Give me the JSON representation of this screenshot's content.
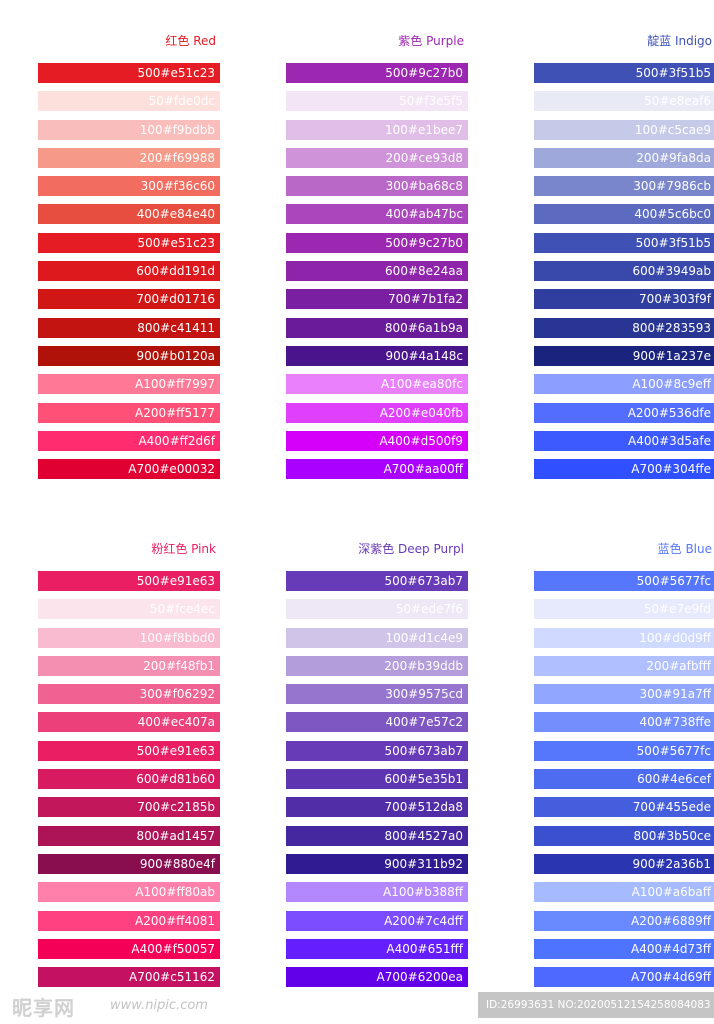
{
  "palettes": [
    {
      "title": "红色 Red",
      "title_color": "#e51c23",
      "swatches": [
        {
          "label": "500#e51c23",
          "color": "#e51c23"
        },
        {
          "label": "50#fde0dc",
          "color": "#fde0dc"
        },
        {
          "label": "100#f9bdbb",
          "color": "#f9bdbb"
        },
        {
          "label": "200#f69988",
          "color": "#f69988"
        },
        {
          "label": "300#f36c60",
          "color": "#f36c60"
        },
        {
          "label": "400#e84e40",
          "color": "#e84e40"
        },
        {
          "label": "500#e51c23",
          "color": "#e51c23"
        },
        {
          "label": "600#dd191d",
          "color": "#dd191d"
        },
        {
          "label": "700#d01716",
          "color": "#d01716"
        },
        {
          "label": "800#c41411",
          "color": "#c41411"
        },
        {
          "label": "900#b0120a",
          "color": "#b0120a"
        },
        {
          "label": "A100#ff7997",
          "color": "#ff7997"
        },
        {
          "label": "A200#ff5177",
          "color": "#ff5177"
        },
        {
          "label": "A400#ff2d6f",
          "color": "#ff2d6f"
        },
        {
          "label": "A700#e00032",
          "color": "#e00032"
        }
      ]
    },
    {
      "title": "紫色 Purple",
      "title_color": "#9c27b0",
      "swatches": [
        {
          "label": "500#9c27b0",
          "color": "#9c27b0"
        },
        {
          "label": "50#f3e5f5",
          "color": "#f3e5f5"
        },
        {
          "label": "100#e1bee7",
          "color": "#e1bee7"
        },
        {
          "label": "200#ce93d8",
          "color": "#ce93d8"
        },
        {
          "label": "300#ba68c8",
          "color": "#ba68c8"
        },
        {
          "label": "400#ab47bc",
          "color": "#ab47bc"
        },
        {
          "label": "500#9c27b0",
          "color": "#9c27b0"
        },
        {
          "label": "600#8e24aa",
          "color": "#8e24aa"
        },
        {
          "label": "700#7b1fa2",
          "color": "#7b1fa2"
        },
        {
          "label": "800#6a1b9a",
          "color": "#6a1b9a"
        },
        {
          "label": "900#4a148c",
          "color": "#4a148c"
        },
        {
          "label": "A100#ea80fc",
          "color": "#ea80fc"
        },
        {
          "label": "A200#e040fb",
          "color": "#e040fb"
        },
        {
          "label": "A400#d500f9",
          "color": "#d500f9"
        },
        {
          "label": "A700#aa00ff",
          "color": "#aa00ff"
        }
      ]
    },
    {
      "title": "靛蓝 Indigo",
      "title_color": "#3f51b5",
      "swatches": [
        {
          "label": "500#3f51b5",
          "color": "#3f51b5"
        },
        {
          "label": "50#e8eaf6",
          "color": "#e8eaf6"
        },
        {
          "label": "100#c5cae9",
          "color": "#c5cae9"
        },
        {
          "label": "200#9fa8da",
          "color": "#9fa8da"
        },
        {
          "label": "300#7986cb",
          "color": "#7986cb"
        },
        {
          "label": "400#5c6bc0",
          "color": "#5c6bc0"
        },
        {
          "label": "500#3f51b5",
          "color": "#3f51b5"
        },
        {
          "label": "600#3949ab",
          "color": "#3949ab"
        },
        {
          "label": "700#303f9f",
          "color": "#303f9f"
        },
        {
          "label": "800#283593",
          "color": "#283593"
        },
        {
          "label": "900#1a237e",
          "color": "#1a237e"
        },
        {
          "label": "A100#8c9eff",
          "color": "#8c9eff"
        },
        {
          "label": "A200#536dfe",
          "color": "#536dfe"
        },
        {
          "label": "A400#3d5afe",
          "color": "#3d5afe"
        },
        {
          "label": "A700#304ffe",
          "color": "#304ffe"
        }
      ]
    },
    {
      "title": "粉红色 Pink",
      "title_color": "#e91e63",
      "swatches": [
        {
          "label": "500#e91e63",
          "color": "#e91e63"
        },
        {
          "label": "50#fce4ec",
          "color": "#fce4ec"
        },
        {
          "label": "100#f8bbd0",
          "color": "#f8bbd0"
        },
        {
          "label": "200#f48fb1",
          "color": "#f48fb1"
        },
        {
          "label": "300#f06292",
          "color": "#f06292"
        },
        {
          "label": "400#ec407a",
          "color": "#ec407a"
        },
        {
          "label": "500#e91e63",
          "color": "#e91e63"
        },
        {
          "label": "600#d81b60",
          "color": "#d81b60"
        },
        {
          "label": "700#c2185b",
          "color": "#c2185b"
        },
        {
          "label": "800#ad1457",
          "color": "#ad1457"
        },
        {
          "label": "900#880e4f",
          "color": "#880e4f"
        },
        {
          "label": "A100#ff80ab",
          "color": "#ff80ab"
        },
        {
          "label": "A200#ff4081",
          "color": "#ff4081"
        },
        {
          "label": "A400#f50057",
          "color": "#f50057"
        },
        {
          "label": "A700#c51162",
          "color": "#c51162"
        }
      ]
    },
    {
      "title": "深紫色 Deep Purpl",
      "title_color": "#673ab7",
      "swatches": [
        {
          "label": "500#673ab7",
          "color": "#673ab7"
        },
        {
          "label": "50#ede7f6",
          "color": "#ede7f6"
        },
        {
          "label": "100#d1c4e9",
          "color": "#d1c4e9"
        },
        {
          "label": "200#b39ddb",
          "color": "#b39ddb"
        },
        {
          "label": "300#9575cd",
          "color": "#9575cd"
        },
        {
          "label": "400#7e57c2",
          "color": "#7e57c2"
        },
        {
          "label": "500#673ab7",
          "color": "#673ab7"
        },
        {
          "label": "600#5e35b1",
          "color": "#5e35b1"
        },
        {
          "label": "700#512da8",
          "color": "#512da8"
        },
        {
          "label": "800#4527a0",
          "color": "#4527a0"
        },
        {
          "label": "900#311b92",
          "color": "#311b92"
        },
        {
          "label": "A100#b388ff",
          "color": "#b388ff"
        },
        {
          "label": "A200#7c4dff",
          "color": "#7c4dff"
        },
        {
          "label": "A400#651fff",
          "color": "#651fff"
        },
        {
          "label": "A700#6200ea",
          "color": "#6200ea"
        }
      ]
    },
    {
      "title": "蓝色 Blue",
      "title_color": "#5677fc",
      "swatches": [
        {
          "label": "500#5677fc",
          "color": "#5677fc"
        },
        {
          "label": "50#e7e9fd",
          "color": "#e7e9fd"
        },
        {
          "label": "100#d0d9ff",
          "color": "#d0d9ff"
        },
        {
          "label": "200#afbfff",
          "color": "#afbfff"
        },
        {
          "label": "300#91a7ff",
          "color": "#91a7ff"
        },
        {
          "label": "400#738ffe",
          "color": "#738ffe"
        },
        {
          "label": "500#5677fc",
          "color": "#5677fc"
        },
        {
          "label": "600#4e6cef",
          "color": "#4e6cef"
        },
        {
          "label": "700#455ede",
          "color": "#455ede"
        },
        {
          "label": "800#3b50ce",
          "color": "#3b50ce"
        },
        {
          "label": "900#2a36b1",
          "color": "#2a36b1"
        },
        {
          "label": "A100#a6baff",
          "color": "#a6baff"
        },
        {
          "label": "A200#6889ff",
          "color": "#6889ff"
        },
        {
          "label": "A400#4d73ff",
          "color": "#4d73ff"
        },
        {
          "label": "A700#4d69ff",
          "color": "#4d69ff"
        }
      ]
    }
  ],
  "watermark": {
    "logo": "昵享网",
    "url": "www.nipic.com",
    "id_text": "ID:26993631 NO:20200512154258084083"
  }
}
